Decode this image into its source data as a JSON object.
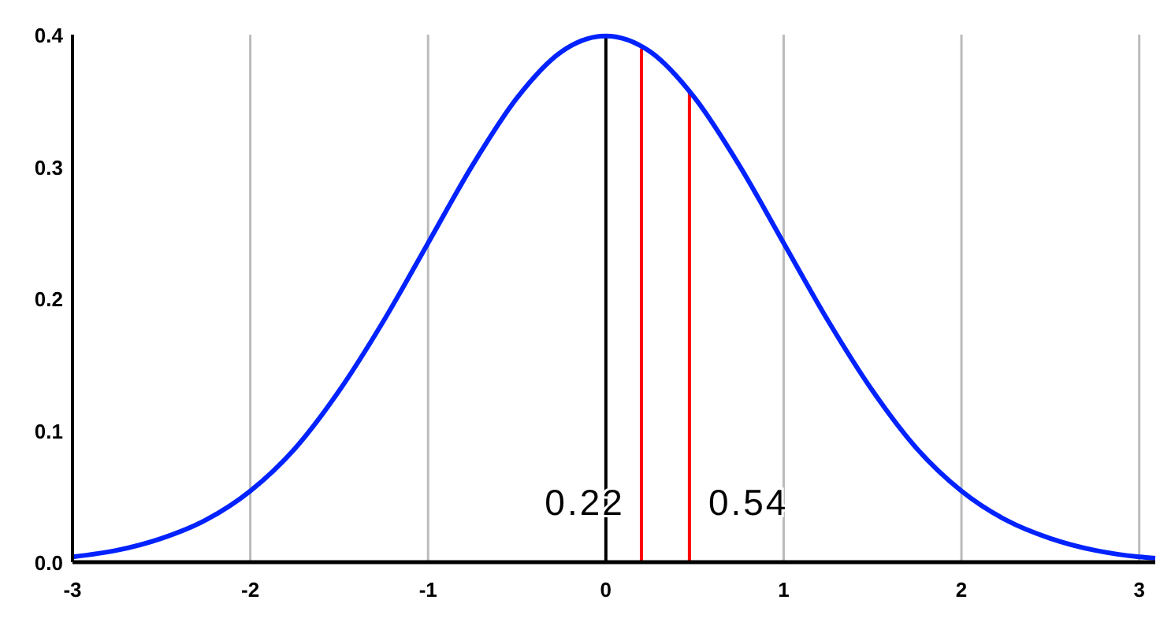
{
  "chart_data": {
    "type": "line",
    "x": [
      -3,
      -2.75,
      -2.5,
      -2.25,
      -2,
      -1.75,
      -1.5,
      -1.25,
      -1,
      -0.75,
      -0.5,
      -0.25,
      0,
      0.25,
      0.5,
      0.75,
      1,
      1.25,
      1.5,
      1.75,
      2,
      2.25,
      2.5,
      2.75,
      3,
      3.09
    ],
    "series": [
      {
        "color": "#0022ff",
        "values": [
          0.004,
          0.009,
          0.018,
          0.032,
          0.054,
          0.086,
          0.13,
          0.183,
          0.242,
          0.301,
          0.352,
          0.387,
          0.399,
          0.387,
          0.352,
          0.301,
          0.242,
          0.183,
          0.13,
          0.086,
          0.054,
          0.032,
          0.018,
          0.009,
          0.004,
          0.003
        ]
      }
    ],
    "xlim": [
      -3,
      3.09
    ],
    "xticks": [
      -3,
      -2,
      -1,
      0,
      1,
      2,
      3
    ],
    "ylim": [
      0,
      0.4
    ],
    "yticks": [
      {
        "value": 0,
        "label": "0.0"
      },
      0.1,
      0.2,
      0.3,
      0.4
    ],
    "grid": "x",
    "marker": "none",
    "line_style": "solid",
    "ref_lines": [
      {
        "axis": "x",
        "value": 0,
        "color": "#000000"
      },
      {
        "axis": "x",
        "value": 0.2,
        "color": "#ff0000"
      },
      {
        "axis": "x",
        "value": 0.47,
        "color": "#ff0000"
      }
    ],
    "annotations": [
      "0.22",
      "0.54"
    ]
  }
}
